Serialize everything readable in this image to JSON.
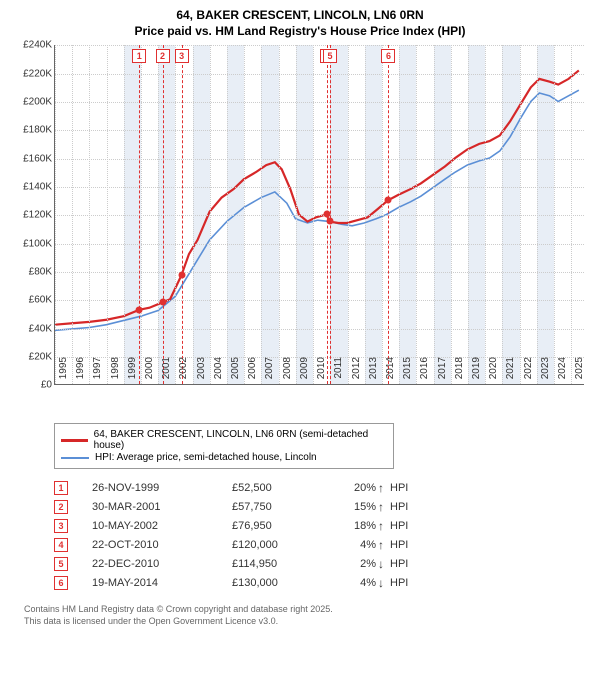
{
  "title_line1": "64, BAKER CRESCENT, LINCOLN, LN6 0RN",
  "title_line2": "Price paid vs. HM Land Registry's House Price Index (HPI)",
  "chart": {
    "type": "line",
    "xlim": [
      1995,
      2025.8
    ],
    "ylim": [
      0,
      240000
    ],
    "ytick_step": 20000,
    "yticks": [
      "£0",
      "£20K",
      "£40K",
      "£60K",
      "£80K",
      "£100K",
      "£120K",
      "£140K",
      "£160K",
      "£180K",
      "£200K",
      "£220K",
      "£240K"
    ],
    "xticks": [
      1995,
      1996,
      1997,
      1998,
      1999,
      2000,
      2001,
      2002,
      2003,
      2004,
      2005,
      2006,
      2007,
      2008,
      2009,
      2010,
      2011,
      2012,
      2013,
      2014,
      2015,
      2016,
      2017,
      2018,
      2019,
      2020,
      2021,
      2022,
      2023,
      2024,
      2025
    ],
    "vband_pairs": [
      [
        1999,
        2000
      ],
      [
        2001,
        2002
      ],
      [
        2003,
        2004
      ],
      [
        2005,
        2006
      ],
      [
        2007,
        2008
      ],
      [
        2009,
        2010
      ],
      [
        2011,
        2012
      ],
      [
        2013,
        2014
      ],
      [
        2015,
        2016
      ],
      [
        2017,
        2018
      ],
      [
        2019,
        2020
      ],
      [
        2021,
        2022
      ],
      [
        2023,
        2024
      ]
    ],
    "background_color": "#ffffff",
    "grid_color": "#cccccc",
    "series": {
      "price_paid": {
        "color": "#d62728",
        "width": 2.2,
        "points": [
          [
            1995,
            42000
          ],
          [
            1996,
            43000
          ],
          [
            1997,
            44000
          ],
          [
            1998,
            45500
          ],
          [
            1999,
            48000
          ],
          [
            1999.9,
            52500
          ],
          [
            2000.5,
            54000
          ],
          [
            2001.25,
            57750
          ],
          [
            2001.7,
            60000
          ],
          [
            2002.36,
            76950
          ],
          [
            2002.8,
            92000
          ],
          [
            2003.3,
            102000
          ],
          [
            2004,
            122000
          ],
          [
            2004.7,
            132000
          ],
          [
            2005.4,
            138000
          ],
          [
            2006,
            145000
          ],
          [
            2006.7,
            150000
          ],
          [
            2007.3,
            155000
          ],
          [
            2007.8,
            157000
          ],
          [
            2008.2,
            152000
          ],
          [
            2008.7,
            138000
          ],
          [
            2009.2,
            120000
          ],
          [
            2009.7,
            115000
          ],
          [
            2010.2,
            118000
          ],
          [
            2010.81,
            120000
          ],
          [
            2010.98,
            114950
          ],
          [
            2011.5,
            114000
          ],
          [
            2012,
            114000
          ],
          [
            2012.6,
            116000
          ],
          [
            2013.2,
            118000
          ],
          [
            2013.8,
            124000
          ],
          [
            2014.38,
            130000
          ],
          [
            2015,
            134000
          ],
          [
            2015.7,
            138000
          ],
          [
            2016.3,
            142000
          ],
          [
            2017,
            148000
          ],
          [
            2017.7,
            154000
          ],
          [
            2018.3,
            160000
          ],
          [
            2019,
            166000
          ],
          [
            2019.7,
            170000
          ],
          [
            2020.3,
            172000
          ],
          [
            2020.9,
            176000
          ],
          [
            2021.5,
            186000
          ],
          [
            2022.1,
            198000
          ],
          [
            2022.7,
            210000
          ],
          [
            2023.2,
            216000
          ],
          [
            2023.8,
            214000
          ],
          [
            2024.3,
            212000
          ],
          [
            2024.9,
            216000
          ],
          [
            2025.5,
            222000
          ]
        ]
      },
      "hpi": {
        "color": "#5b8fd6",
        "width": 1.6,
        "points": [
          [
            1995,
            38000
          ],
          [
            1996,
            39000
          ],
          [
            1997,
            40000
          ],
          [
            1998,
            42000
          ],
          [
            1999,
            45000
          ],
          [
            2000,
            48000
          ],
          [
            2001,
            52000
          ],
          [
            2002,
            62000
          ],
          [
            2003,
            82000
          ],
          [
            2004,
            102000
          ],
          [
            2005,
            115000
          ],
          [
            2006,
            125000
          ],
          [
            2007,
            132000
          ],
          [
            2007.8,
            136000
          ],
          [
            2008.5,
            128000
          ],
          [
            2009,
            117000
          ],
          [
            2009.7,
            114000
          ],
          [
            2010.3,
            116000
          ],
          [
            2011,
            115000
          ],
          [
            2011.7,
            113000
          ],
          [
            2012.3,
            112000
          ],
          [
            2013,
            114000
          ],
          [
            2013.7,
            117000
          ],
          [
            2014.3,
            120000
          ],
          [
            2015,
            125000
          ],
          [
            2015.7,
            129000
          ],
          [
            2016.3,
            133000
          ],
          [
            2017,
            139000
          ],
          [
            2017.7,
            145000
          ],
          [
            2018.3,
            150000
          ],
          [
            2019,
            155000
          ],
          [
            2019.7,
            158000
          ],
          [
            2020.3,
            160000
          ],
          [
            2020.9,
            165000
          ],
          [
            2021.5,
            175000
          ],
          [
            2022.1,
            188000
          ],
          [
            2022.7,
            200000
          ],
          [
            2023.2,
            206000
          ],
          [
            2023.8,
            204000
          ],
          [
            2024.3,
            200000
          ],
          [
            2024.9,
            204000
          ],
          [
            2025.5,
            208000
          ]
        ]
      }
    },
    "sale_markers": [
      {
        "n": "1",
        "x": 1999.9,
        "y": 52500
      },
      {
        "n": "2",
        "x": 2001.25,
        "y": 57750
      },
      {
        "n": "3",
        "x": 2002.36,
        "y": 76950
      },
      {
        "n": "4",
        "x": 2010.81,
        "y": 120000
      },
      {
        "n": "5",
        "x": 2010.98,
        "y": 114950
      },
      {
        "n": "6",
        "x": 2014.38,
        "y": 130000
      }
    ]
  },
  "legend": {
    "items": [
      {
        "color": "#d62728",
        "label": "64, BAKER CRESCENT, LINCOLN, LN6 0RN (semi-detached house)"
      },
      {
        "color": "#5b8fd6",
        "label": "HPI: Average price, semi-detached house, Lincoln"
      }
    ]
  },
  "sales": [
    {
      "n": "1",
      "date": "26-NOV-1999",
      "price": "£52,500",
      "pct": "20%",
      "dir": "up"
    },
    {
      "n": "2",
      "date": "30-MAR-2001",
      "price": "£57,750",
      "pct": "15%",
      "dir": "up"
    },
    {
      "n": "3",
      "date": "10-MAY-2002",
      "price": "£76,950",
      "pct": "18%",
      "dir": "up"
    },
    {
      "n": "4",
      "date": "22-OCT-2010",
      "price": "£120,000",
      "pct": "4%",
      "dir": "up"
    },
    {
      "n": "5",
      "date": "22-DEC-2010",
      "price": "£114,950",
      "pct": "2%",
      "dir": "down"
    },
    {
      "n": "6",
      "date": "19-MAY-2014",
      "price": "£130,000",
      "pct": "4%",
      "dir": "down"
    }
  ],
  "hpi_label": "HPI",
  "footer_line1": "Contains HM Land Registry data © Crown copyright and database right 2025.",
  "footer_line2": "This data is licensed under the Open Government Licence v3.0."
}
